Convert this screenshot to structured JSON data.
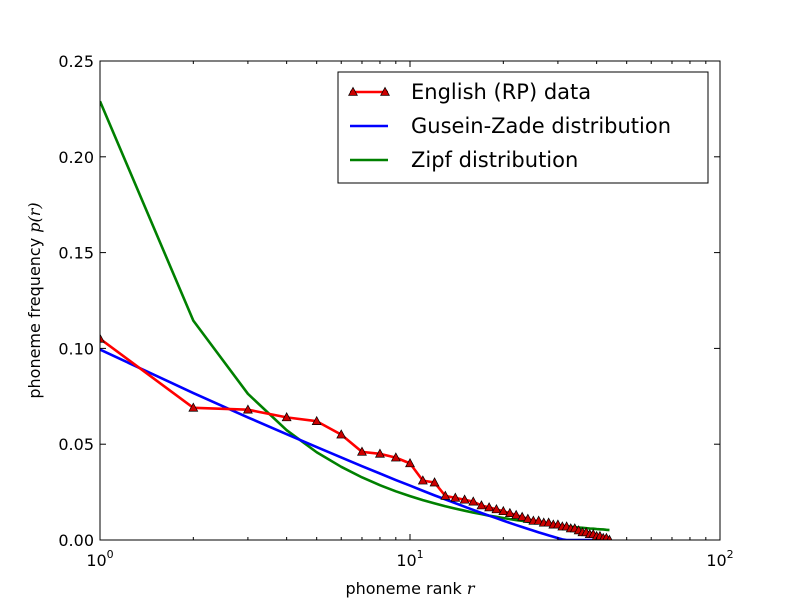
{
  "chart_data": {
    "type": "line",
    "xscale": "log",
    "xlim": [
      1,
      100
    ],
    "ylim": [
      0,
      0.25
    ],
    "xlabel": "phoneme rank",
    "xlabel_var": "r",
    "ylabel": "phoneme frequency",
    "ylabel_var": "p(r)",
    "xticks": [
      1,
      10,
      100
    ],
    "xtick_labels": [
      {
        "base": "10",
        "exp": "0"
      },
      {
        "base": "10",
        "exp": "1"
      },
      {
        "base": "10",
        "exp": "2"
      }
    ],
    "yticks": [
      0.0,
      0.05,
      0.1,
      0.15,
      0.2,
      0.25
    ],
    "ytick_labels": [
      "0.00",
      "0.05",
      "0.10",
      "0.15",
      "0.20",
      "0.25"
    ],
    "legend_position": "top-right",
    "grid": false,
    "series": [
      {
        "name": "English (RP) data",
        "color": "#ff0000",
        "marker": "triangle",
        "marker_color": "#cc0000",
        "x": [
          1,
          2,
          3,
          4,
          5,
          6,
          7,
          8,
          9,
          10,
          11,
          12,
          13,
          14,
          15,
          16,
          17,
          18,
          19,
          20,
          21,
          22,
          23,
          24,
          25,
          26,
          27,
          28,
          29,
          30,
          31,
          32,
          33,
          34,
          35,
          36,
          37,
          38,
          39,
          40,
          41,
          42,
          43,
          44
        ],
        "y": [
          0.105,
          0.069,
          0.068,
          0.064,
          0.062,
          0.055,
          0.046,
          0.045,
          0.043,
          0.04,
          0.031,
          0.03,
          0.023,
          0.022,
          0.021,
          0.02,
          0.018,
          0.017,
          0.016,
          0.015,
          0.014,
          0.013,
          0.012,
          0.011,
          0.01,
          0.01,
          0.009,
          0.009,
          0.008,
          0.008,
          0.007,
          0.007,
          0.006,
          0.006,
          0.005,
          0.004,
          0.004,
          0.003,
          0.003,
          0.002,
          0.002,
          0.001,
          0.001,
          0.0
        ]
      },
      {
        "name": "Gusein-Zade distribution",
        "color": "#0000ff",
        "x": [
          1,
          2,
          3,
          4,
          5,
          6,
          7,
          8,
          9,
          10,
          11,
          12,
          13,
          14,
          15,
          16,
          17,
          18,
          19,
          20,
          21,
          22,
          23,
          24,
          25,
          26,
          27,
          28,
          29,
          30,
          31,
          32,
          33,
          34,
          35,
          36,
          37,
          38,
          39,
          40,
          41,
          42,
          43,
          44
        ],
        "y": [
          0.0994,
          0.0767,
          0.064,
          0.0552,
          0.0485,
          0.0431,
          0.0385,
          0.0347,
          0.0313,
          0.0284,
          0.0257,
          0.0233,
          0.0212,
          0.0192,
          0.0174,
          0.0157,
          0.0141,
          0.0127,
          0.0114,
          0.0101,
          0.0089,
          0.0078,
          0.0068,
          0.0058,
          0.0049,
          0.004,
          0.0032,
          0.0024,
          0.0017,
          0.001,
          0.0003,
          0.0,
          0.0,
          0.0,
          0.0,
          0.0,
          0.0,
          0.0,
          0.0,
          0.0,
          0.0,
          0.0,
          0.0,
          0.0
        ]
      },
      {
        "name": "Zipf distribution",
        "color": "#008000",
        "x": [
          1,
          2,
          3,
          4,
          5,
          6,
          7,
          8,
          9,
          10,
          11,
          12,
          13,
          14,
          15,
          16,
          17,
          18,
          19,
          20,
          21,
          22,
          23,
          24,
          25,
          26,
          27,
          28,
          29,
          30,
          31,
          32,
          33,
          34,
          35,
          36,
          37,
          38,
          39,
          40,
          41,
          42,
          43,
          44
        ],
        "y": [
          0.229,
          0.1145,
          0.0763,
          0.0573,
          0.0458,
          0.0382,
          0.0327,
          0.0286,
          0.0254,
          0.0229,
          0.0208,
          0.0191,
          0.0176,
          0.0164,
          0.0153,
          0.0143,
          0.0135,
          0.0127,
          0.0121,
          0.0115,
          0.0109,
          0.0104,
          0.01,
          0.0095,
          0.0092,
          0.0088,
          0.0085,
          0.0082,
          0.0079,
          0.0076,
          0.0074,
          0.0072,
          0.0069,
          0.0067,
          0.0065,
          0.0064,
          0.0062,
          0.006,
          0.0059,
          0.0057,
          0.0056,
          0.0055,
          0.0053,
          0.0052
        ]
      }
    ]
  }
}
